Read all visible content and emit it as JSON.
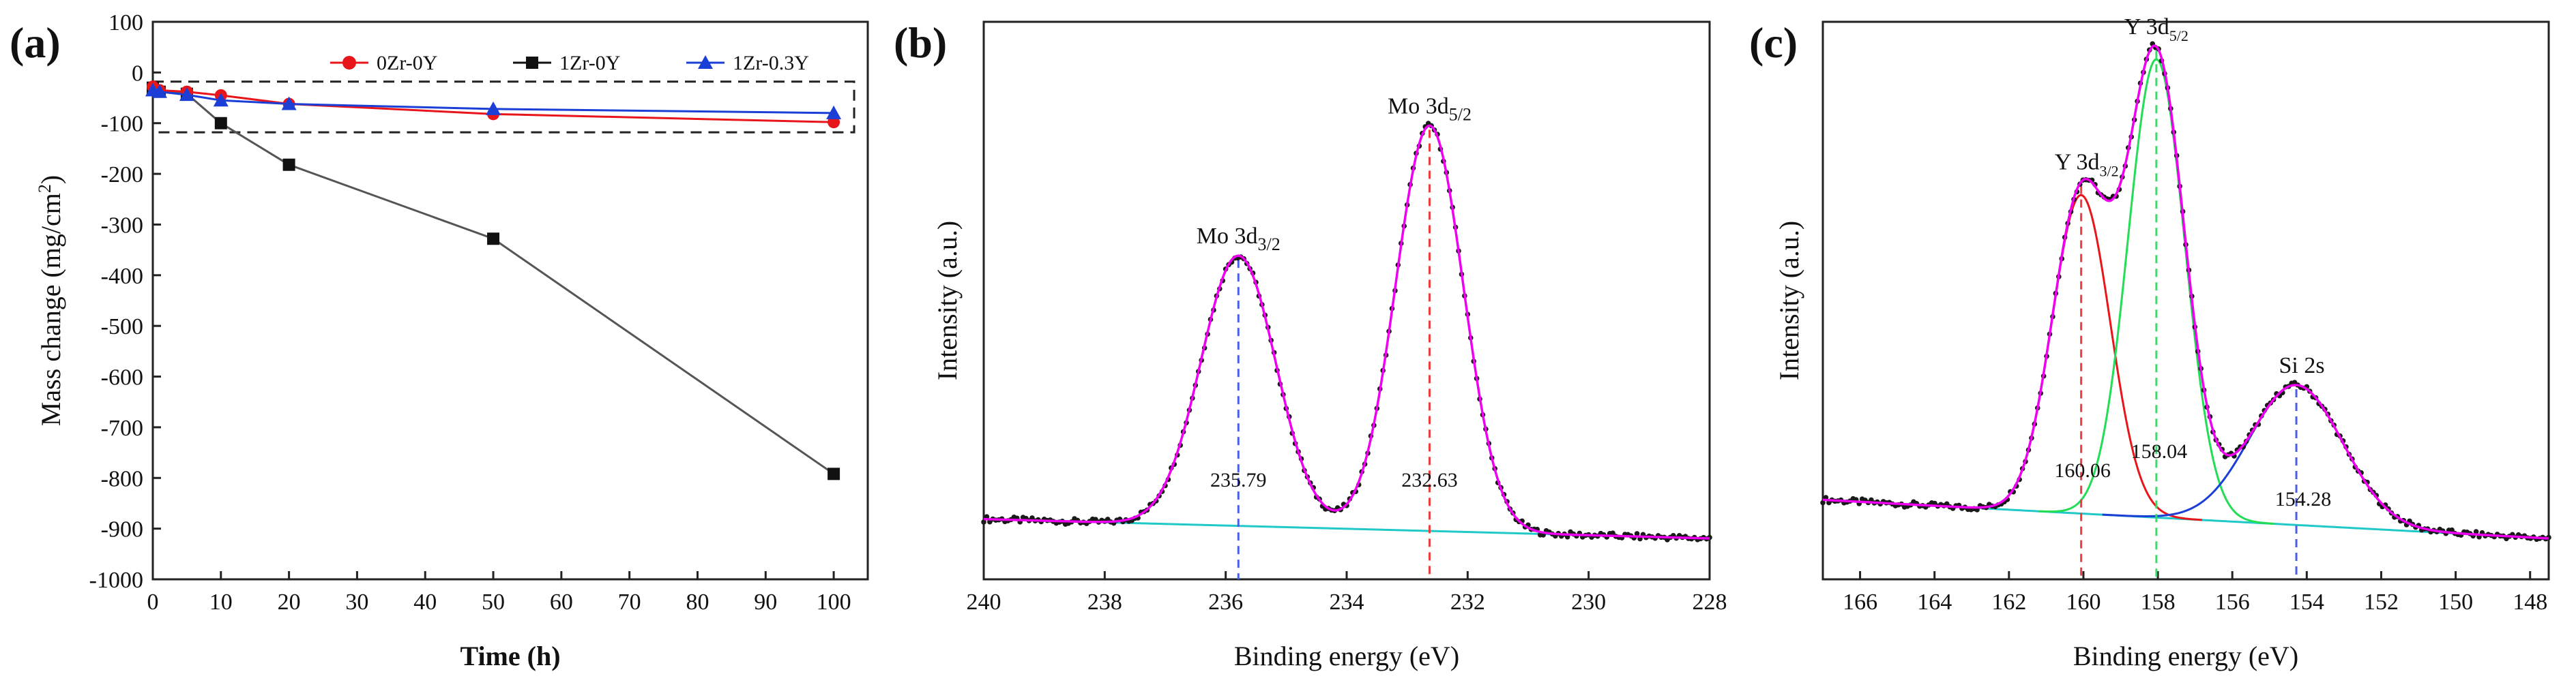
{
  "colors": {
    "red": "#e8151b",
    "black": "#111111",
    "blue": "#1b3fd6",
    "magenta": "#f000f0",
    "cyan": "#20c8c8",
    "green": "#22dd55",
    "dots": "#1a1a1a",
    "dashed_blue": "#4a5ee8",
    "dashed_red": "#ee3b3b",
    "dashed_green": "#33dd66"
  },
  "chart_data": [
    {
      "panel": "(a)",
      "type": "line",
      "xlabel": "Time (h)",
      "ylabel_main": "Mass change (mg/cm",
      "ylabel_sup": "2",
      "ylabel_end": ")",
      "xlim": [
        0,
        105
      ],
      "ylim": [
        -1000,
        100
      ],
      "xticks": [
        0,
        10,
        20,
        30,
        40,
        50,
        60,
        70,
        80,
        90,
        100
      ],
      "yticks": [
        100,
        0,
        -100,
        -200,
        -300,
        -400,
        -500,
        -600,
        -700,
        -800,
        -900,
        -1000
      ],
      "legend_position": "top-right",
      "series": [
        {
          "name": "0Zr-0Y",
          "color_key": "red",
          "marker": "circle",
          "x": [
            0,
            1,
            5,
            10,
            20,
            50,
            100
          ],
          "y": [
            -28,
            -35,
            -38,
            -45,
            -62,
            -82,
            -98
          ]
        },
        {
          "name": "1Zr-0Y",
          "color_key": "black",
          "marker": "square",
          "x": [
            0,
            1,
            5,
            10,
            20,
            50,
            100
          ],
          "y": [
            -30,
            -38,
            -42,
            -100,
            -182,
            -328,
            -792
          ]
        },
        {
          "name": "1Zr-0.3Y",
          "color_key": "blue",
          "marker": "triangle",
          "x": [
            0,
            1,
            5,
            10,
            20,
            50,
            100
          ],
          "y": [
            -35,
            -38,
            -44,
            -55,
            -62,
            -72,
            -80
          ]
        }
      ],
      "zoom_box": {
        "x": [
          0,
          103
        ],
        "y": [
          -118,
          -18
        ]
      }
    },
    {
      "panel": "(b)",
      "type": "line",
      "xlabel": "Binding energy (eV)",
      "ylabel": "Intensity (a.u.)",
      "xlim": [
        240,
        228
      ],
      "xticks": [
        240,
        238,
        236,
        234,
        232,
        230,
        228
      ],
      "peaks": [
        {
          "label_main": "Mo 3d",
          "label_sub": "3/2",
          "position": 235.79,
          "value_label": "235.79",
          "intensity": 0.56,
          "width": 0.62,
          "line_color_key": "dashed_blue"
        },
        {
          "label_main": "Mo 3d",
          "label_sub": "5/2",
          "position": 232.63,
          "value_label": "232.63",
          "intensity": 0.84,
          "width": 0.56,
          "line_color_key": "dashed_red"
        }
      ],
      "background": {
        "start": 0.04,
        "end": 0.0
      }
    },
    {
      "panel": "(c)",
      "type": "line",
      "xlabel": "Binding energy (eV)",
      "ylabel": "Intensity (a.u.)",
      "xlim": [
        167,
        147.5
      ],
      "xticks": [
        166,
        164,
        162,
        160,
        158,
        156,
        154,
        152,
        150,
        148
      ],
      "peaks": [
        {
          "label_main": "Y 3d",
          "label_sub": "3/2",
          "position": 160.06,
          "value_label": "160.06",
          "intensity": 0.66,
          "width": 0.78,
          "component_color_key": "red",
          "line_color_key": "dashed_red"
        },
        {
          "label_main": "Y 3d",
          "label_sub": "5/2",
          "position": 158.04,
          "value_label": "158.04",
          "intensity": 0.95,
          "width": 0.76,
          "component_color_key": "green",
          "line_color_key": "dashed_green"
        },
        {
          "label_main": "Si 2s",
          "label_sub": "",
          "position": 154.28,
          "value_label": "154.28",
          "intensity": 0.29,
          "width": 1.25,
          "component_color_key": "blue",
          "line_color_key": "dashed_blue"
        }
      ],
      "background": {
        "start": 0.08,
        "end": 0.0
      }
    }
  ]
}
